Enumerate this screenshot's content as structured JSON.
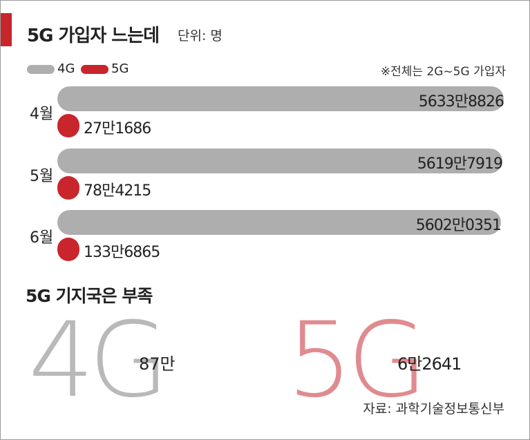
{
  "title": "5G 가입자 느는데",
  "unit": "단위: 명",
  "legend": [
    {
      "label": "4G",
      "color": "#aeaeae"
    },
    {
      "label": "5G",
      "color": "#c8252c"
    }
  ],
  "note": "※전체는 2G~5G 가입자",
  "chart_data": {
    "type": "bar",
    "orientation": "horizontal",
    "title": "5G 가입자 느는데",
    "unit": "명",
    "categories": [
      "4월",
      "5월",
      "6월"
    ],
    "series": [
      {
        "name": "4G",
        "color": "#aeaeae",
        "values": [
          56338826,
          56197919,
          56020351
        ],
        "labels": [
          "5633만8826",
          "5619만7919",
          "5602만0351"
        ]
      },
      {
        "name": "5G",
        "color": "#c8252c",
        "values": [
          271686,
          784215,
          1336865
        ],
        "labels": [
          "27만1686",
          "78만4215",
          "133만6865"
        ]
      }
    ],
    "legend": "top-left"
  },
  "stations": {
    "title": "5G 기지국은 부족",
    "items": [
      {
        "label": "4G",
        "value": "87만"
      },
      {
        "label": "5G",
        "value": "6만2641"
      }
    ]
  },
  "source": "자료: 과학기술정보통신부"
}
